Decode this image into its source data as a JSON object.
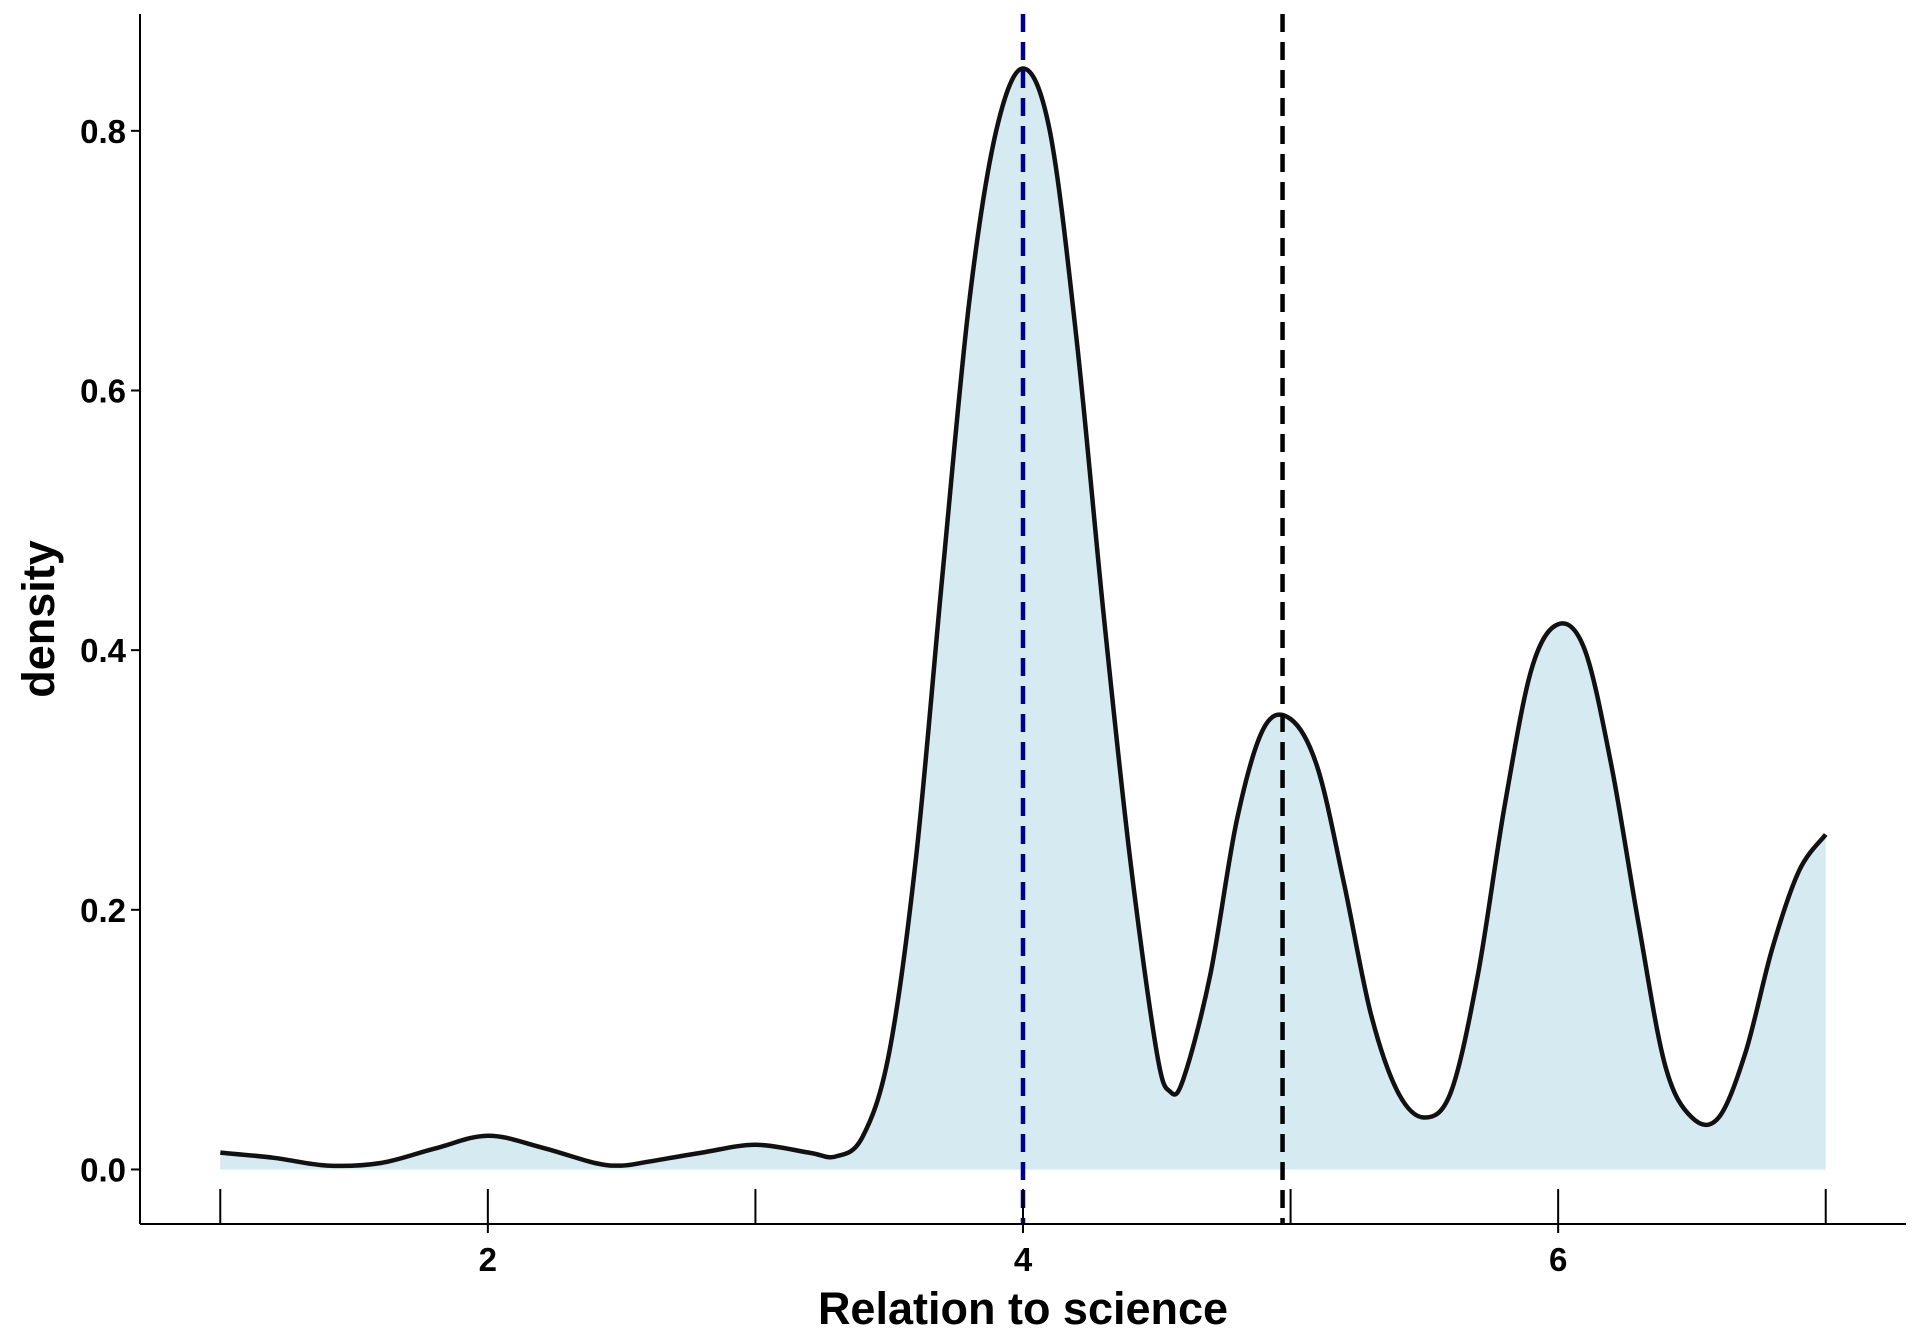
{
  "chart_data": {
    "type": "area",
    "xlabel": "Relation to science",
    "ylabel": "density",
    "xlim": [
      0.7,
      7.3
    ],
    "ylim": [
      -0.042,
      0.89
    ],
    "x_ticks": [
      2,
      4,
      6
    ],
    "x_tick_labels": [
      "2",
      "4",
      "6"
    ],
    "x_minor_ticks": [
      1,
      3,
      5,
      7
    ],
    "y_ticks": [
      0.0,
      0.2,
      0.4,
      0.6,
      0.8
    ],
    "y_tick_labels": [
      "0.0",
      "0.2",
      "0.4",
      "0.6",
      "0.8"
    ],
    "grid": false,
    "fill_color": "#d6eaf1",
    "line_color": "#111111",
    "density": {
      "x": [
        1.0,
        1.2,
        1.4,
        1.6,
        1.8,
        2.0,
        2.2,
        2.4,
        2.5,
        2.6,
        2.8,
        3.0,
        3.2,
        3.3,
        3.4,
        3.5,
        3.6,
        3.7,
        3.8,
        3.9,
        4.0,
        4.1,
        4.2,
        4.3,
        4.4,
        4.5,
        4.55,
        4.6,
        4.7,
        4.8,
        4.9,
        5.0,
        5.1,
        5.2,
        5.3,
        5.4,
        5.5,
        5.6,
        5.7,
        5.8,
        5.9,
        6.0,
        6.1,
        6.2,
        6.3,
        6.4,
        6.5,
        6.6,
        6.7,
        6.8,
        6.9,
        7.0
      ],
      "y": [
        0.013,
        0.009,
        0.003,
        0.005,
        0.016,
        0.026,
        0.017,
        0.005,
        0.003,
        0.006,
        0.013,
        0.019,
        0.013,
        0.01,
        0.025,
        0.09,
        0.24,
        0.46,
        0.67,
        0.8,
        0.848,
        0.8,
        0.64,
        0.43,
        0.24,
        0.09,
        0.06,
        0.07,
        0.15,
        0.27,
        0.34,
        0.347,
        0.31,
        0.22,
        0.12,
        0.06,
        0.04,
        0.06,
        0.15,
        0.28,
        0.385,
        0.42,
        0.4,
        0.31,
        0.19,
        0.08,
        0.04,
        0.04,
        0.09,
        0.17,
        0.23,
        0.258
      ]
    },
    "vlines": [
      {
        "x": 4.0,
        "color": "#00008b",
        "style": "dashed"
      },
      {
        "x": 4.97,
        "color": "#000000",
        "style": "dashed"
      }
    ]
  }
}
